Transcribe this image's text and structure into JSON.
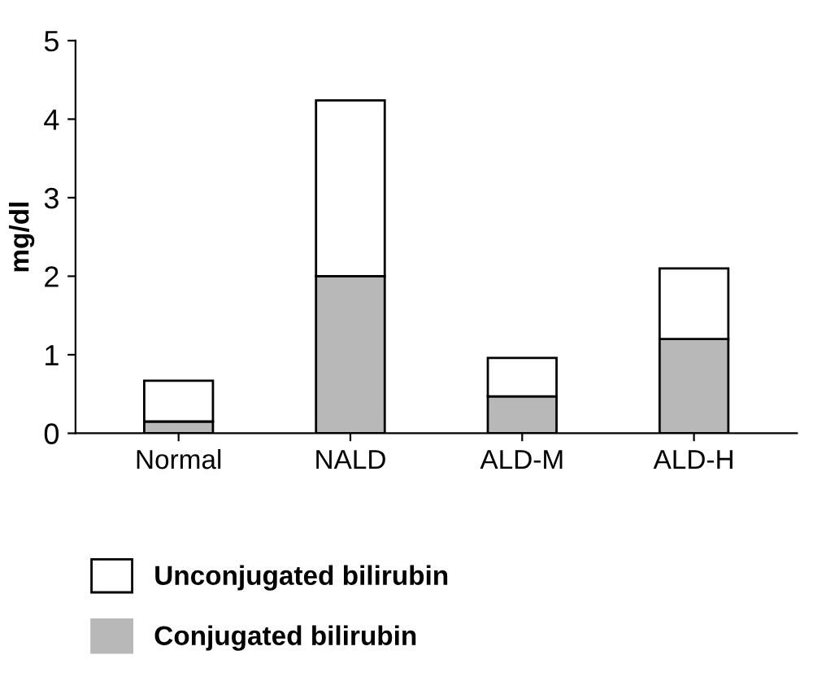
{
  "chart_data": {
    "type": "bar",
    "stacked": true,
    "ylabel": "mg/dl",
    "categories": [
      "Normal",
      "NALD",
      "ALD-M",
      "ALD-H"
    ],
    "series": [
      {
        "name": "Conjugated bilirubin",
        "color": "#b8b8b8",
        "values": [
          0.15,
          2.0,
          0.47,
          1.2
        ]
      },
      {
        "name": "Unconjugated bilirubin",
        "color": "#ffffff",
        "values": [
          0.52,
          2.24,
          0.49,
          0.9
        ]
      }
    ],
    "ylim": [
      0,
      5
    ],
    "yticks": [
      0,
      1,
      2,
      3,
      4,
      5
    ],
    "grid": false,
    "legend": "bottom"
  }
}
